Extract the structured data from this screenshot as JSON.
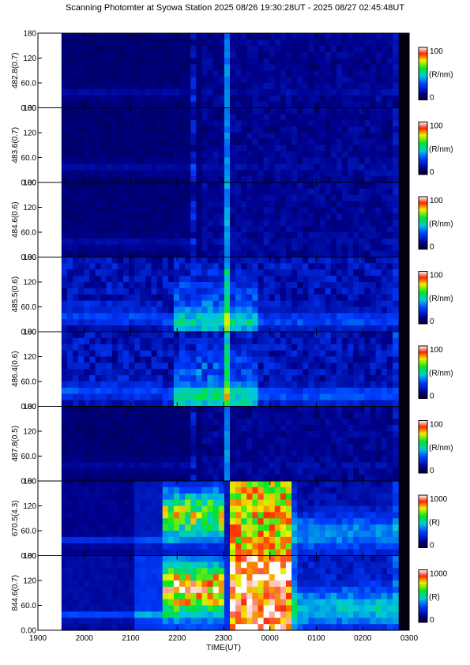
{
  "title": "Scanning Photomter at Syowa Station 2025 08/26 19:30:28UT - 2025 08/27 02:45:48UT",
  "chart_data": {
    "type": "heatmap",
    "xlabel": "TIME(UT)",
    "x_ticks": [
      "1900",
      "2000",
      "2100",
      "2200",
      "2300",
      "0000",
      "0100",
      "0200",
      "0300"
    ],
    "x_range": [
      "19:00",
      "03:00"
    ],
    "data_span": [
      "19:30:28",
      "02:45:48"
    ],
    "y_ticks": [
      "0.00",
      "60.0",
      "120",
      "180"
    ],
    "ylim": [
      0,
      180
    ],
    "colormap": "rainbow (dark blue - blue - cyan - green - yellow - red - white)",
    "panels": [
      {
        "ylabel": "482.8(0.7)",
        "cmax": "100",
        "cmin": "0",
        "unit": "(R/nm)",
        "intensity": 0.25,
        "kind": "weak"
      },
      {
        "ylabel": "483.6(0.7)",
        "cmax": "100",
        "cmin": "0",
        "unit": "(R/nm)",
        "intensity": 0.28,
        "kind": "weak"
      },
      {
        "ylabel": "484.6(0.6)",
        "cmax": "100",
        "cmin": "0",
        "unit": "(R/nm)",
        "intensity": 0.35,
        "kind": "weak"
      },
      {
        "ylabel": "485.5(0.6)",
        "cmax": "100",
        "cmin": "0",
        "unit": "(R/nm)",
        "intensity": 0.55,
        "kind": "hbeta"
      },
      {
        "ylabel": "486.4(0.6)",
        "cmax": "100",
        "cmin": "0",
        "unit": "(R/nm)",
        "intensity": 0.62,
        "kind": "hbeta"
      },
      {
        "ylabel": "487.8(0.5)",
        "cmax": "100",
        "cmin": "0",
        "unit": "(R/nm)",
        "intensity": 0.28,
        "kind": "weak"
      },
      {
        "ylabel": "670.5(4.3)",
        "cmax": "1000",
        "cmin": "0",
        "unit": "(R)",
        "intensity": 0.7,
        "kind": "aurora"
      },
      {
        "ylabel": "844.6(0.7)",
        "cmax": "1000",
        "cmin": "0",
        "unit": "(R)",
        "intensity": 1.0,
        "kind": "aurora"
      }
    ]
  }
}
